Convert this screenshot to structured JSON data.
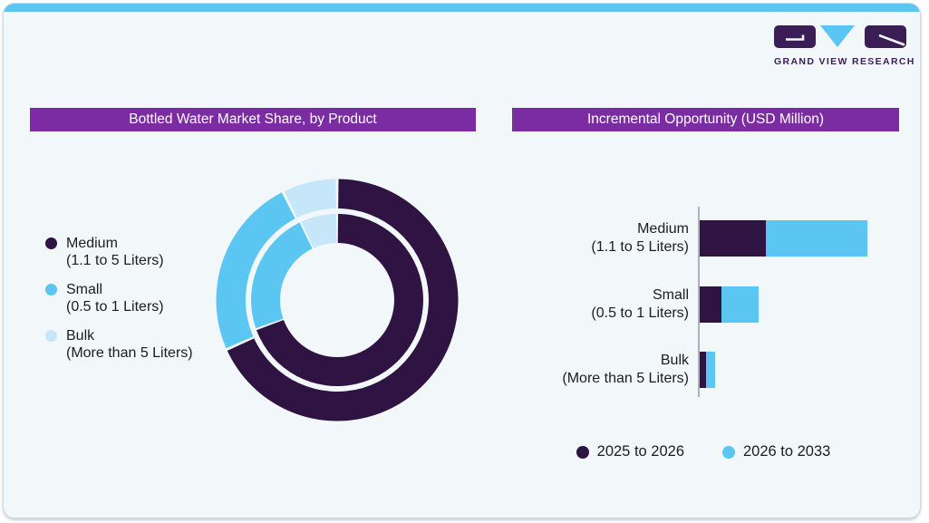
{
  "logo": {
    "wordmark": "GRAND VIEW RESEARCH"
  },
  "colors": {
    "dark_purple": "#2F1343",
    "light_blue": "#5BC6F2",
    "pale_blue": "#C6E7F9",
    "title_bar_purple": "#7C2CA2",
    "logo_purple": "#3A1E55",
    "card_background": "#F2F7FA",
    "axis_gray": "#a9b3b9"
  },
  "chart_data": [
    {
      "type": "pie",
      "subtype": "double-ring-donut",
      "title": "Bottled Water Market Share, by Product",
      "legend_position": "left",
      "legend": [
        {
          "label": "Medium",
          "sublabel": "(1.1 to 5 Liters)",
          "color": "#2F1343"
        },
        {
          "label": "Small",
          "sublabel": "(0.5 to 1 Liters)",
          "color": "#5BC6F2"
        },
        {
          "label": "Bulk",
          "sublabel": "(More than 5 Liters)",
          "color": "#C6E7F9"
        }
      ],
      "rings": [
        {
          "name": "outer",
          "values_pct": [
            68.3,
            24.3,
            7.4
          ]
        },
        {
          "name": "inner",
          "values_pct": [
            69.5,
            23.5,
            7.0
          ]
        }
      ],
      "start_angle_deg": 0,
      "direction": "clockwise"
    },
    {
      "type": "bar",
      "orientation": "horizontal",
      "stacked": true,
      "title": "Incremental Opportunity (USD Million)",
      "categories": [
        {
          "line1": "Medium",
          "line2": "(1.1 to 5 Liters)"
        },
        {
          "line1": "Small",
          "line2": "(0.5 to 1 Liters)"
        },
        {
          "line1": "Bulk",
          "line2": "(More than 5 Liters)"
        }
      ],
      "series": [
        {
          "name": "2025 to 2026",
          "color": "#2F1343",
          "values": [
            73,
            24,
            7
          ]
        },
        {
          "name": "2026 to 2033",
          "color": "#5BC6F2",
          "values": [
            112,
            41,
            10
          ]
        }
      ],
      "value_axis_ticks_shown": false,
      "legend_position": "bottom"
    }
  ]
}
